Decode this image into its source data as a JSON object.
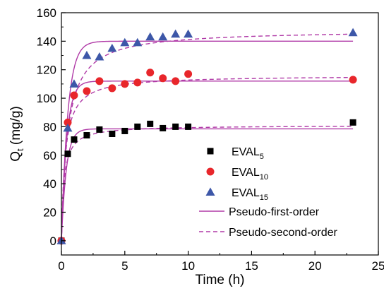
{
  "chart_data": {
    "type": "scatter",
    "xlabel": "Time (h)",
    "ylabel": {
      "main": "Q",
      "sub": "t",
      "rest": " (mg/g)"
    },
    "xlim": [
      0,
      25
    ],
    "ylim": [
      -10,
      160
    ],
    "xticks": [
      0,
      5,
      10,
      15,
      20,
      25
    ],
    "yticks": [
      0,
      20,
      40,
      60,
      80,
      100,
      120,
      140,
      160
    ],
    "grid": false,
    "legend_position": "center-right",
    "series": [
      {
        "name": {
          "main": "EVAL",
          "sub": "5"
        },
        "marker": "square",
        "color": "#000000",
        "x": [
          0,
          0.5,
          1,
          2,
          3,
          4,
          5,
          6,
          7,
          8,
          9,
          10,
          23
        ],
        "y": [
          0,
          61,
          71,
          74,
          78,
          75,
          77,
          80,
          82,
          79,
          80,
          80,
          83
        ]
      },
      {
        "name": {
          "main": "EVAL",
          "sub": "10"
        },
        "marker": "circle",
        "color": "#e8262b",
        "x": [
          0,
          0.5,
          1,
          2,
          3,
          4,
          5,
          6,
          7,
          8,
          9,
          10,
          23
        ],
        "y": [
          0,
          83,
          102,
          105,
          112,
          107,
          110,
          111,
          118,
          114,
          112,
          117,
          113
        ]
      },
      {
        "name": {
          "main": "EVAL",
          "sub": "15"
        },
        "marker": "triangle",
        "color": "#3d57a8",
        "x": [
          0,
          0.5,
          1,
          2,
          3,
          4,
          5,
          6,
          7,
          8,
          9,
          10,
          23
        ],
        "y": [
          0,
          79,
          110,
          130,
          129,
          135,
          139,
          139,
          143,
          143,
          145,
          145,
          146
        ]
      }
    ],
    "fits": [
      {
        "name": "Pseudo-first-order",
        "style": "solid",
        "color": "#b03aa7",
        "curves": [
          {
            "model": "first",
            "qe": 78.5,
            "k": 2.6
          },
          {
            "model": "first",
            "qe": 112,
            "k": 2.4
          },
          {
            "model": "first",
            "qe": 140,
            "k": 2.0
          }
        ]
      },
      {
        "name": "Pseudo-second-order",
        "style": "dashed",
        "color": "#b03aa7",
        "curves": [
          {
            "model": "second",
            "qe": 81,
            "k": 0.06
          },
          {
            "model": "second",
            "qe": 116,
            "k": 0.03
          },
          {
            "model": "second",
            "qe": 148,
            "k": 0.014
          }
        ]
      }
    ]
  }
}
